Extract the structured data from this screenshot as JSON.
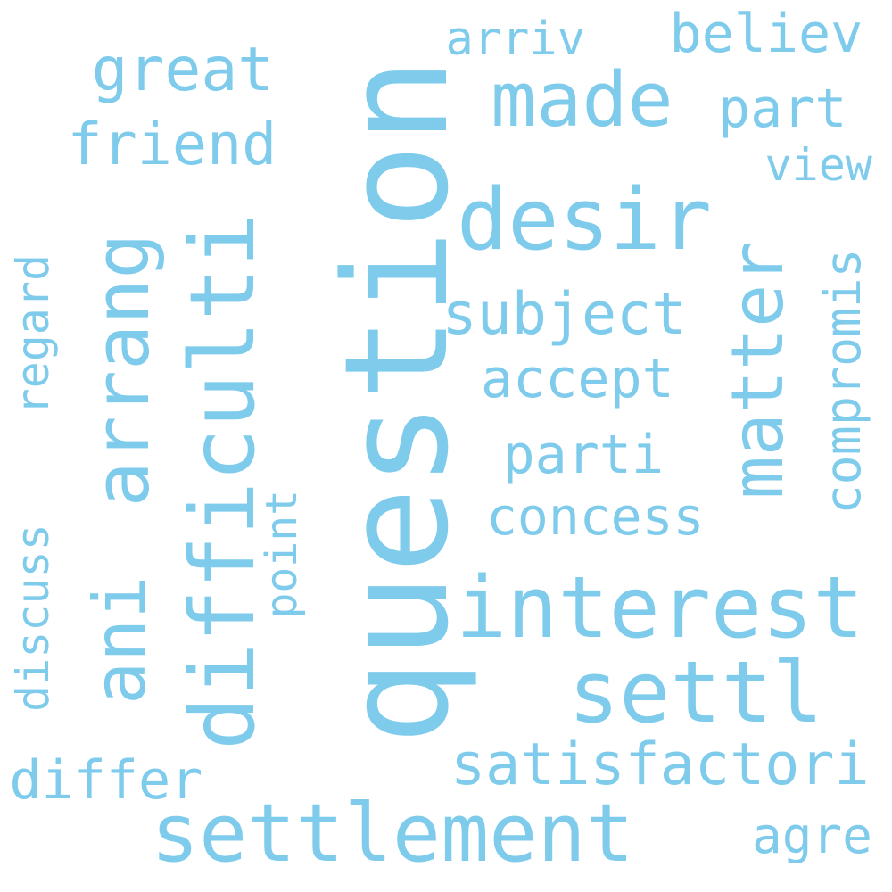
{
  "color": "#7ecbeb",
  "words": [
    {
      "text": "question"
    },
    {
      "text": "settlement"
    },
    {
      "text": "difficulti"
    },
    {
      "text": "arrang"
    },
    {
      "text": "matter"
    },
    {
      "text": "interest"
    },
    {
      "text": "settl"
    },
    {
      "text": "desir"
    },
    {
      "text": "made"
    },
    {
      "text": "ani"
    },
    {
      "text": "satisfactori"
    },
    {
      "text": "compromis"
    },
    {
      "text": "concess"
    },
    {
      "text": "subject"
    },
    {
      "text": "accept"
    },
    {
      "text": "parti"
    },
    {
      "text": "friend"
    },
    {
      "text": "great"
    },
    {
      "text": "regard"
    },
    {
      "text": "discuss"
    },
    {
      "text": "differ"
    },
    {
      "text": "point"
    },
    {
      "text": "arriv"
    },
    {
      "text": "believ"
    },
    {
      "text": "part"
    },
    {
      "text": "view"
    },
    {
      "text": "agre"
    }
  ]
}
